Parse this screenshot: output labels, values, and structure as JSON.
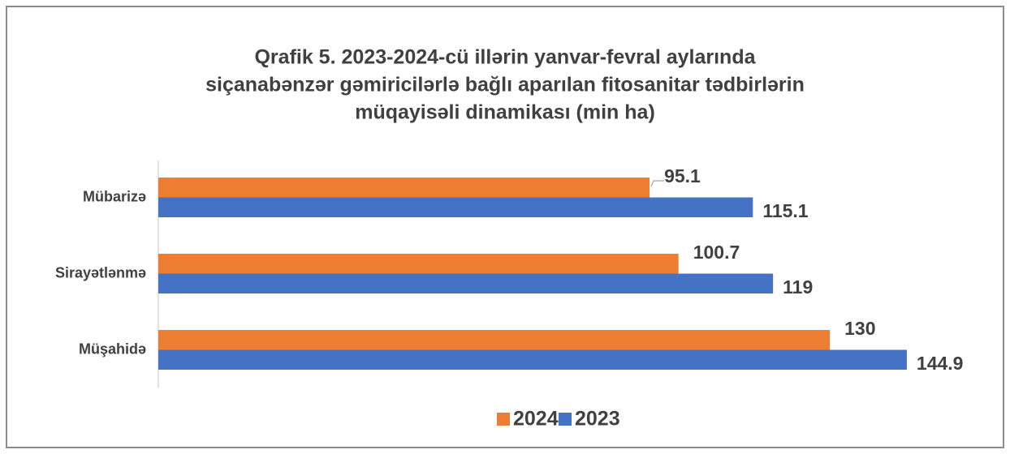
{
  "chart_data": {
    "type": "hbar",
    "title": [
      "Qrafik 5. 2023-2024-cü illərin yanvar-fevral aylarında",
      "siçanabənzər gəmiricilərlə bağlı aparılan fitosanitar tədbirlərin",
      "müqayisəli dinamikası (min ha)"
    ],
    "categories": [
      "Mübarizə",
      "Sirayətlənmə",
      "Müşahidə"
    ],
    "series": [
      {
        "name": "2024",
        "color": "#ed7d31",
        "values": [
          95.1,
          100.7,
          130
        ]
      },
      {
        "name": "2023",
        "color": "#4472c4",
        "values": [
          115.1,
          119,
          144.9
        ]
      }
    ],
    "xlim": [
      0,
      160
    ],
    "legend": "bottom"
  }
}
